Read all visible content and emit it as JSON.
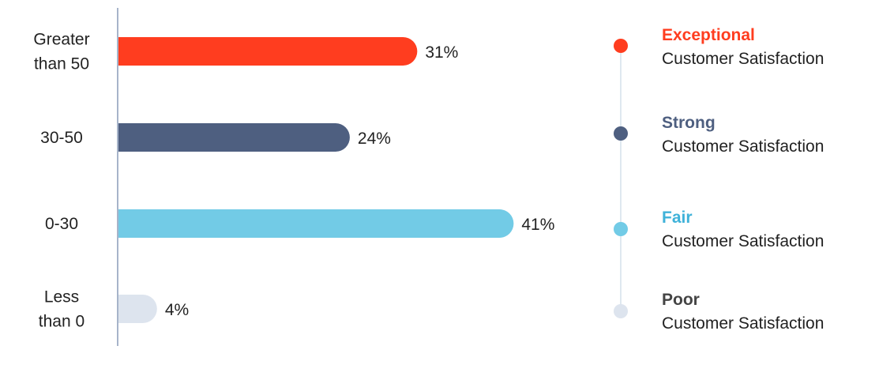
{
  "chart_data": {
    "type": "bar",
    "orientation": "horizontal",
    "categories": [
      [
        "Greater",
        "than 50"
      ],
      [
        "30-50"
      ],
      [
        "0-30"
      ],
      [
        "Less",
        "than 0"
      ]
    ],
    "values": [
      31,
      24,
      41,
      4
    ],
    "value_labels": [
      "31%",
      "24%",
      "41%",
      "4%"
    ],
    "bar_colors": [
      "#ff3d1f",
      "#4e5f80",
      "#72cbe6",
      "#dde4ee"
    ],
    "xlim": [
      0,
      44
    ],
    "grid": false
  },
  "legend": {
    "line_color": "#dfe8f0",
    "items": [
      {
        "title": "Exceptional",
        "subtitle": "Customer Satisfaction",
        "title_color": "#ff3d1f",
        "dot_color": "#ff3d1f"
      },
      {
        "title": "Strong",
        "subtitle": "Customer Satisfaction",
        "title_color": "#4e5f80",
        "dot_color": "#4e5f80"
      },
      {
        "title": "Fair",
        "subtitle": "Customer Satisfaction",
        "title_color": "#3fb2d9",
        "dot_color": "#72cbe6"
      },
      {
        "title": "Poor",
        "subtitle": "Customer Satisfaction",
        "title_color": "#444444",
        "dot_color": "#dde4ee"
      }
    ]
  }
}
